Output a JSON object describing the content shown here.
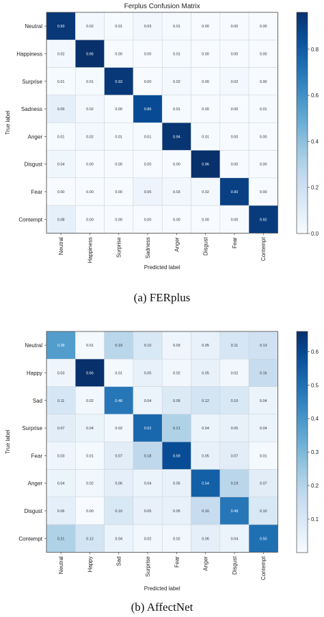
{
  "chart_data": [
    {
      "type": "heatmap",
      "title": "Ferplus Confusion Matrix",
      "xlabel": "Predicted label",
      "ylabel": "True label",
      "caption": "(a) FERplus",
      "x_categories": [
        "Neutral",
        "Happiness",
        "Surprise",
        "Sadness",
        "Anger",
        "Disgust",
        "Fear",
        "Contempt"
      ],
      "y_categories": [
        "Neutral",
        "Happiness",
        "Surprise",
        "Sadness",
        "Anger",
        "Disgust",
        "Fear",
        "Contempt"
      ],
      "values": [
        [
          0.93,
          0.02,
          0.01,
          0.03,
          0.01,
          0.0,
          0.0,
          0.0
        ],
        [
          0.02,
          0.96,
          0.0,
          0.0,
          0.01,
          0.0,
          0.0,
          0.0
        ],
        [
          0.01,
          0.01,
          0.93,
          0.0,
          0.02,
          0.0,
          0.02,
          0.0
        ],
        [
          0.09,
          0.02,
          0.0,
          0.86,
          0.01,
          0.0,
          0.0,
          0.01
        ],
        [
          0.01,
          0.02,
          0.01,
          0.01,
          0.94,
          0.01,
          0.0,
          0.0
        ],
        [
          0.04,
          0.0,
          0.0,
          0.0,
          0.0,
          0.96,
          0.0,
          0.0
        ],
        [
          0.0,
          0.0,
          0.0,
          0.05,
          0.03,
          0.02,
          0.9,
          0.0
        ],
        [
          0.08,
          0.0,
          0.0,
          0.0,
          0.0,
          0.0,
          0.0,
          0.92
        ]
      ],
      "colorbar": {
        "range": [
          0,
          0.96
        ],
        "ticks": [
          "0.0",
          "0.2",
          "0.4",
          "0.6",
          "0.8"
        ],
        "tick_values": [
          0,
          0.2,
          0.4,
          0.6,
          0.8
        ]
      },
      "colormap": "Blues"
    },
    {
      "type": "heatmap",
      "title": "",
      "xlabel": "Predicted label",
      "ylabel": "True label",
      "caption": "(b) AffectNet",
      "x_categories": [
        "Neutral",
        "Happy",
        "Sad",
        "Surprise",
        "Fear",
        "Anger",
        "Disgust",
        "Contempt"
      ],
      "y_categories": [
        "Neutral",
        "Happy",
        "Sad",
        "Surprise",
        "Fear",
        "Anger",
        "Disgust",
        "Contempt"
      ],
      "values": [
        [
          0.38,
          0.01,
          0.19,
          0.1,
          0.03,
          0.05,
          0.11,
          0.13
        ],
        [
          0.03,
          0.66,
          0.01,
          0.05,
          0.02,
          0.05,
          0.02,
          0.16
        ],
        [
          0.11,
          0.02,
          0.48,
          0.04,
          0.09,
          0.12,
          0.1,
          0.04
        ],
        [
          0.07,
          0.04,
          0.02,
          0.52,
          0.21,
          0.04,
          0.05,
          0.04
        ],
        [
          0.03,
          0.01,
          0.07,
          0.18,
          0.59,
          0.05,
          0.07,
          0.01
        ],
        [
          0.04,
          0.02,
          0.06,
          0.04,
          0.05,
          0.54,
          0.19,
          0.07
        ],
        [
          0.06,
          0.0,
          0.1,
          0.05,
          0.05,
          0.16,
          0.48,
          0.1
        ],
        [
          0.21,
          0.12,
          0.04,
          0.02,
          0.02,
          0.06,
          0.04,
          0.5
        ]
      ],
      "colorbar": {
        "range": [
          0,
          0.66
        ],
        "ticks": [
          "0.1",
          "0.2",
          "0.3",
          "0.4",
          "0.5",
          "0.6"
        ],
        "tick_values": [
          0.1,
          0.2,
          0.3,
          0.4,
          0.5,
          0.6
        ]
      },
      "colormap": "Blues"
    }
  ]
}
